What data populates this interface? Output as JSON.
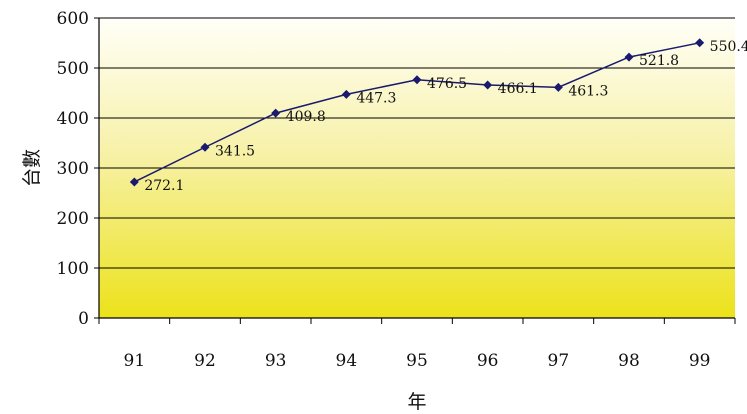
{
  "chart_data": {
    "type": "line",
    "title": "",
    "xlabel": "年",
    "ylabel": "台數",
    "categories": [
      "91",
      "92",
      "93",
      "94",
      "95",
      "96",
      "97",
      "98",
      "99"
    ],
    "series": [
      {
        "values": [
          272.1,
          341.5,
          409.8,
          447.3,
          476.5,
          466.1,
          461.3,
          521.8,
          550.4
        ]
      }
    ],
    "data_labels": [
      "272.1",
      "341.5",
      "409.8",
      "447.3",
      "476.5",
      "466.1",
      "461.3",
      "521.8",
      "550.4"
    ],
    "ylim": [
      0,
      600
    ],
    "yticks": [
      0,
      100,
      200,
      300,
      400,
      500,
      600
    ],
    "ytick_labels": [
      "0",
      "100",
      "200",
      "300",
      "400",
      "500",
      "600"
    ],
    "grid": "horizontal",
    "legend": "none",
    "colors": {
      "line": "#1a1a6e",
      "marker": "#1a1a6e",
      "plot_bg_top": "#fffff8",
      "plot_bg_bottom": "#ece21a",
      "gridline": "#000000"
    }
  }
}
